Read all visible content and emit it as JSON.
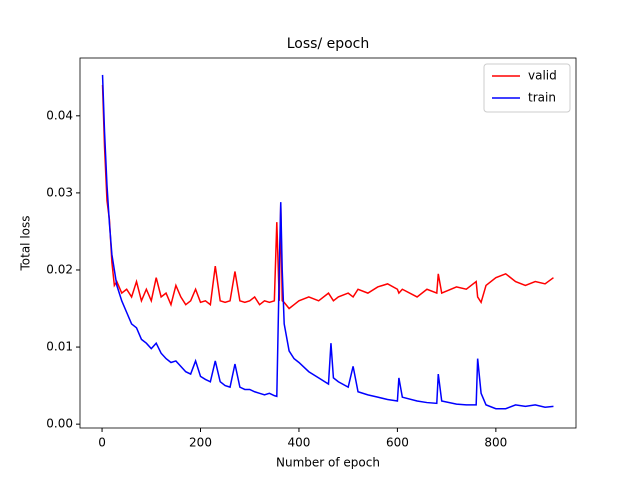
{
  "chart_data": {
    "type": "line",
    "title": "Loss/ epoch",
    "xlabel": "Number of epoch",
    "ylabel": "Total loss",
    "legend": "upper right",
    "x": [
      1,
      5,
      10,
      15,
      20,
      25,
      30,
      40,
      50,
      60,
      70,
      80,
      90,
      100,
      110,
      120,
      130,
      140,
      150,
      160,
      170,
      180,
      190,
      200,
      210,
      220,
      230,
      240,
      250,
      260,
      270,
      280,
      290,
      300,
      310,
      320,
      330,
      340,
      350,
      355,
      360,
      363,
      366,
      370,
      380,
      390,
      400,
      420,
      440,
      460,
      465,
      470,
      480,
      500,
      510,
      520,
      540,
      560,
      580,
      600,
      603,
      610,
      640,
      660,
      680,
      683,
      690,
      720,
      740,
      760,
      763,
      770,
      780,
      800,
      820,
      840,
      860,
      880,
      900,
      917
    ],
    "series": [
      {
        "name": "valid",
        "color": "#ff0000",
        "values": [
          0.044,
          0.036,
          0.029,
          0.0265,
          0.021,
          0.018,
          0.0185,
          0.017,
          0.0175,
          0.0165,
          0.0185,
          0.016,
          0.0175,
          0.016,
          0.019,
          0.0165,
          0.017,
          0.0155,
          0.018,
          0.0165,
          0.0155,
          0.016,
          0.0175,
          0.0158,
          0.016,
          0.0155,
          0.0205,
          0.016,
          0.0158,
          0.016,
          0.0198,
          0.016,
          0.0158,
          0.016,
          0.0165,
          0.0155,
          0.016,
          0.0158,
          0.016,
          0.0262,
          0.016,
          0.0285,
          0.016,
          0.0158,
          0.015,
          0.0155,
          0.016,
          0.0165,
          0.016,
          0.017,
          0.0165,
          0.016,
          0.0165,
          0.017,
          0.0165,
          0.0175,
          0.017,
          0.0178,
          0.0182,
          0.0175,
          0.017,
          0.0175,
          0.0165,
          0.0175,
          0.017,
          0.0195,
          0.017,
          0.0178,
          0.0175,
          0.0185,
          0.0165,
          0.0158,
          0.018,
          0.019,
          0.0195,
          0.0185,
          0.018,
          0.0185,
          0.0182,
          0.019
        ]
      },
      {
        "name": "train",
        "color": "#0000ff",
        "values": [
          0.0453,
          0.038,
          0.031,
          0.026,
          0.022,
          0.02,
          0.018,
          0.016,
          0.0145,
          0.013,
          0.0125,
          0.011,
          0.0105,
          0.0098,
          0.0105,
          0.0092,
          0.0085,
          0.008,
          0.0082,
          0.0075,
          0.0068,
          0.0065,
          0.0082,
          0.0062,
          0.0058,
          0.0055,
          0.0082,
          0.0055,
          0.005,
          0.0048,
          0.0078,
          0.0048,
          0.0045,
          0.0045,
          0.0042,
          0.004,
          0.0038,
          0.004,
          0.0037,
          0.0036,
          0.02,
          0.0288,
          0.02,
          0.013,
          0.0095,
          0.0085,
          0.008,
          0.0068,
          0.006,
          0.0052,
          0.0105,
          0.006,
          0.0055,
          0.0048,
          0.0075,
          0.0042,
          0.0038,
          0.0035,
          0.0032,
          0.003,
          0.006,
          0.0035,
          0.003,
          0.0028,
          0.0027,
          0.0065,
          0.003,
          0.0026,
          0.0025,
          0.0025,
          0.0085,
          0.004,
          0.0025,
          0.002,
          0.002,
          0.0025,
          0.0023,
          0.0025,
          0.0022,
          0.0023
        ]
      }
    ],
    "xlim": [
      -44.8,
      962.8
    ],
    "ylim": [
      -0.0005,
      0.0475
    ],
    "xticks": [
      0,
      200,
      400,
      600,
      800
    ],
    "yticks": [
      {
        "value": 0,
        "label": "0.00"
      },
      {
        "value": 0.01,
        "label": "0.01"
      },
      {
        "value": 0.02,
        "label": "0.02"
      },
      {
        "value": 0.03,
        "label": "0.03"
      },
      {
        "value": 0.04,
        "label": "0.04"
      }
    ]
  }
}
